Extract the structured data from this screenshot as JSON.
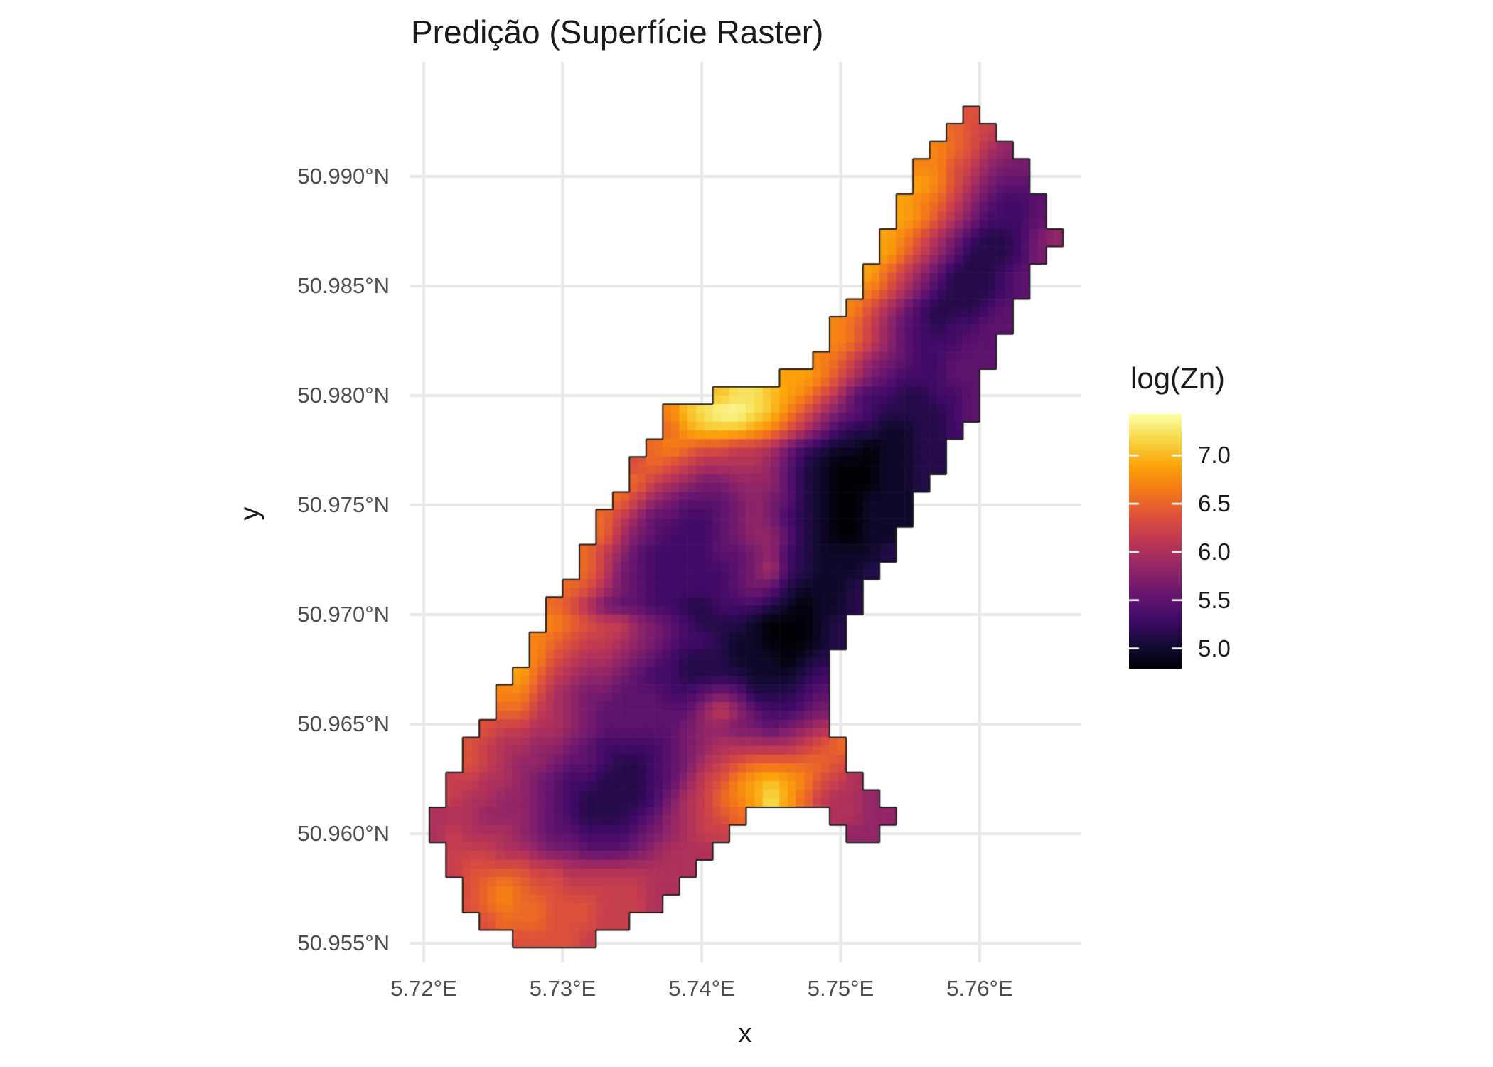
{
  "title": "Predição (Superfície Raster)",
  "axes": {
    "x_title": "x",
    "y_title": "y",
    "x_tick_labels": [
      "5.72°E",
      "5.73°E",
      "5.74°E",
      "5.75°E",
      "5.76°E"
    ],
    "x_tick_values": [
      5.72,
      5.73,
      5.74,
      5.75,
      5.76
    ],
    "y_tick_labels": [
      "50.990°N",
      "50.985°N",
      "50.980°N",
      "50.975°N",
      "50.970°N",
      "50.965°N",
      "50.960°N",
      "50.955°N"
    ],
    "y_tick_values": [
      50.99,
      50.985,
      50.98,
      50.975,
      50.97,
      50.965,
      50.96,
      50.955
    ]
  },
  "legend": {
    "title": "log(Zn)",
    "tick_labels": [
      "7.0",
      "6.5",
      "6.0",
      "5.5",
      "5.0"
    ],
    "tick_values": [
      7.0,
      6.5,
      6.0,
      5.5,
      5.0
    ],
    "bar_domain_top": 7.43,
    "bar_domain_bottom": 4.79
  },
  "colors": {
    "background": "#ffffff",
    "gridline": "#e8e8e8",
    "tick_text": "#4d4d4d",
    "text": "#1a1a1a",
    "region_outline": "#1f1f1f",
    "inferno_stops": [
      "#000004",
      "#160b39",
      "#420a68",
      "#6a176e",
      "#932667",
      "#bc3754",
      "#dd513a",
      "#f47918",
      "#fca50a",
      "#f6d746",
      "#fcffa4"
    ]
  },
  "chart_data": {
    "type": "heatmap",
    "title": "Predição (Superfície Raster)",
    "xlabel": "x",
    "ylabel": "y",
    "fill_label": "log(Zn)",
    "x_range_shown": [
      5.719,
      5.767
    ],
    "y_range_shown": [
      50.9541,
      50.9952
    ],
    "value_domain": [
      4.79,
      7.43
    ],
    "legend_ticks": [
      5.0,
      5.5,
      6.0,
      6.5,
      7.0
    ],
    "grid_on": true,
    "legend_position": "right",
    "raster": {
      "description": "Kriging prediction surface of log(Zn) over an elongated NE-trending floodplain region; bright orange/yellow highs along the NW edge, bottom edge and two local hotspots; dark lows in the center.",
      "lon0_west_edge": 5.718,
      "dlon_per_col": 0.0012,
      "lat0_north_edge": 50.9932,
      "dlat_per_row": 0.0008,
      "ncols": 40,
      "nrows": 48,
      "value_encoding": "hex char 0-f maps linearly to log(Zn) 4.8 (0) .. 7.4 (f); '.' = outside region",
      "rows": [
        "..................................9.....",
        ".................................a98....",
        "................................ba976...",
        "...............................bb98655..",
        "...............................cb97544..",
        "..............................cba864334.",
        "..............................cb9753334.",
        ".............................cb975322356",
        ".............................ca86422235.",
        "............................ca86422234..",
        "............................b975322234..",
        "...........................b975322234...",
        "..........................ba864323344...",
        "..........................ba86433344....",
        ".........................ba865433444....",
        ".......................ccb975433344.....",
        "...................deedcb9743322334.....",
        "................bdeffedb97543222234.....",
        "................acdddcb97532211223......",
        "...............aba998875321101122.......",
        "..............9a98777764210001122.......",
        "..............a87655666421000112........",
        ".............a86544456542100111.........",
        "............a864433456532100111.........",
        "............a75433345664210011..........",
        "...........a864333344563211112..........",
        "...........a85433333457321112...........",
        "..........a97543333345421112............",
        ".........a975443322333210112............",
        ".........ba9886543222100012.............",
        "........ba98876543321100012.............",
        "........b98776543222111012..............",
        ".......ca87665433222211123..............",
        "......bb976554443345422234..............",
        "......aa876544444468643345..............",
        ".....988776544444566554567..............",
        "....9877665433334567777789a.............",
        "....98766544322345789aaaaa9.............",
        "...88776543322234689bcdcb987............",
        "...8776654322223578abceca8776...........",
        "..777666543222346789a.....7766..........",
        "..787776544333456788.......66...........",
        "...8887765544456777.....................",
        "...899998877777777......................",
        "....9aba998888877.......................",
        "....9abaa9998887........................",
        ".....9aaa99988..........................",
        ".......99998............................"
      ]
    }
  }
}
